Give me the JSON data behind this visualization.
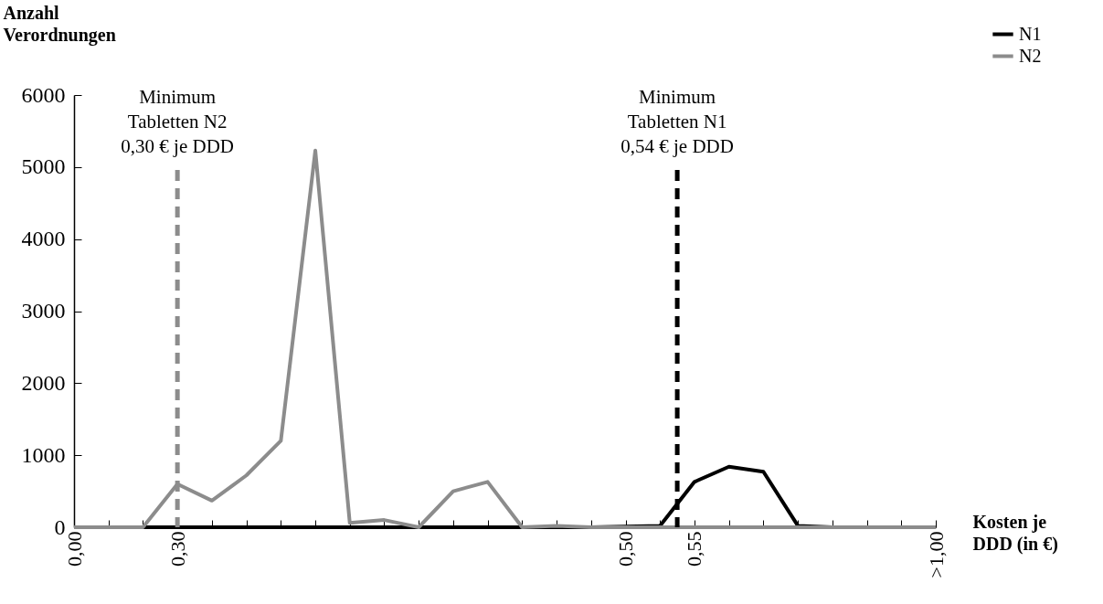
{
  "chart_data": {
    "type": "line",
    "xlabel": "Kosten je\nDDD (in €)",
    "ylabel": "Anzahl\nVerordnungen",
    "categories": [
      "0,00",
      null,
      null,
      "0,30",
      null,
      null,
      null,
      null,
      null,
      null,
      null,
      null,
      null,
      null,
      null,
      null,
      "0,50",
      null,
      "0,55",
      null,
      null,
      null,
      null,
      null,
      null,
      ">1,00"
    ],
    "series": [
      {
        "name": "N1",
        "color": "#000000",
        "values": [
          0,
          0,
          0,
          0,
          0,
          0,
          0,
          0,
          0,
          0,
          0,
          0,
          0,
          0,
          0,
          0,
          10,
          20,
          630,
          840,
          770,
          20,
          0,
          0,
          0,
          0
        ]
      },
      {
        "name": "N2",
        "color": "#8c8c8c",
        "values": [
          0,
          0,
          0,
          600,
          370,
          720,
          1200,
          5230,
          60,
          100,
          0,
          500,
          630,
          0,
          20,
          0,
          0,
          0,
          0,
          0,
          0,
          0,
          0,
          0,
          0,
          0
        ]
      }
    ],
    "ylim": [
      0,
      6000
    ],
    "yticks": [
      0,
      1000,
      2000,
      3000,
      4000,
      5000,
      6000
    ],
    "ref_lines": [
      {
        "axis": "x",
        "value": "0,30",
        "label": "Minimum\nTabletten N2\n0,30 € je DDD",
        "color": "#8c8c8c",
        "line_style": "dashed"
      }
    ],
    "annotations": [
      "Minimum\nTabletten N1\n0,54 € je DDD"
    ],
    "grid": false,
    "legend": "top right",
    "marker": "none",
    "line_style": "solid"
  }
}
